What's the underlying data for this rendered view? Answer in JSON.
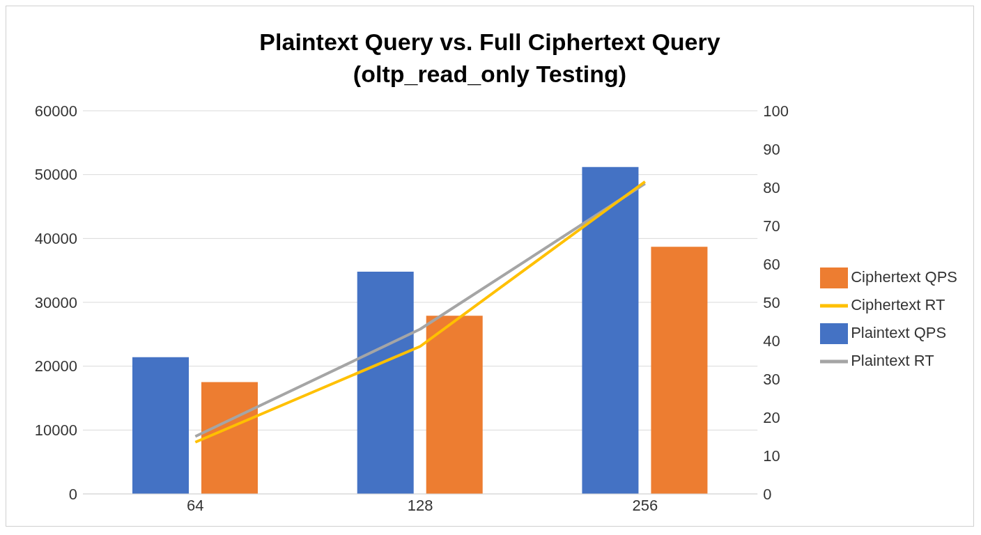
{
  "chart_data": {
    "type": "bar",
    "title": "Plaintext Query vs. Full Ciphertext Query\n(oltp_read_only Testing)",
    "categories": [
      "64",
      "128",
      "256"
    ],
    "series": [
      {
        "name": "Plaintext QPS",
        "color": "#4472c4",
        "values": [
          21400,
          34800,
          51200
        ]
      },
      {
        "name": "Ciphertext QPS",
        "color": "#ed7d31",
        "values": [
          17500,
          27900,
          38700
        ]
      },
      {
        "name": "Plaintext RT",
        "type": "line",
        "axis": "y2",
        "color": "#a5a5a5",
        "values": [
          15,
          43,
          81
        ]
      },
      {
        "name": "Ciphertext RT",
        "type": "line",
        "axis": "y2",
        "color": "#ffc000",
        "values": [
          13.5,
          38.5,
          81.5
        ]
      }
    ],
    "ylim": [
      0,
      60000
    ],
    "yticks": [
      0,
      10000,
      20000,
      30000,
      40000,
      50000,
      60000
    ],
    "y2lim": [
      0,
      100
    ],
    "y2ticks": [
      0,
      10,
      20,
      30,
      40,
      50,
      60,
      70,
      80,
      90,
      100
    ],
    "grid": "y",
    "legend": "right",
    "marker": "none",
    "line_style": "solid"
  }
}
